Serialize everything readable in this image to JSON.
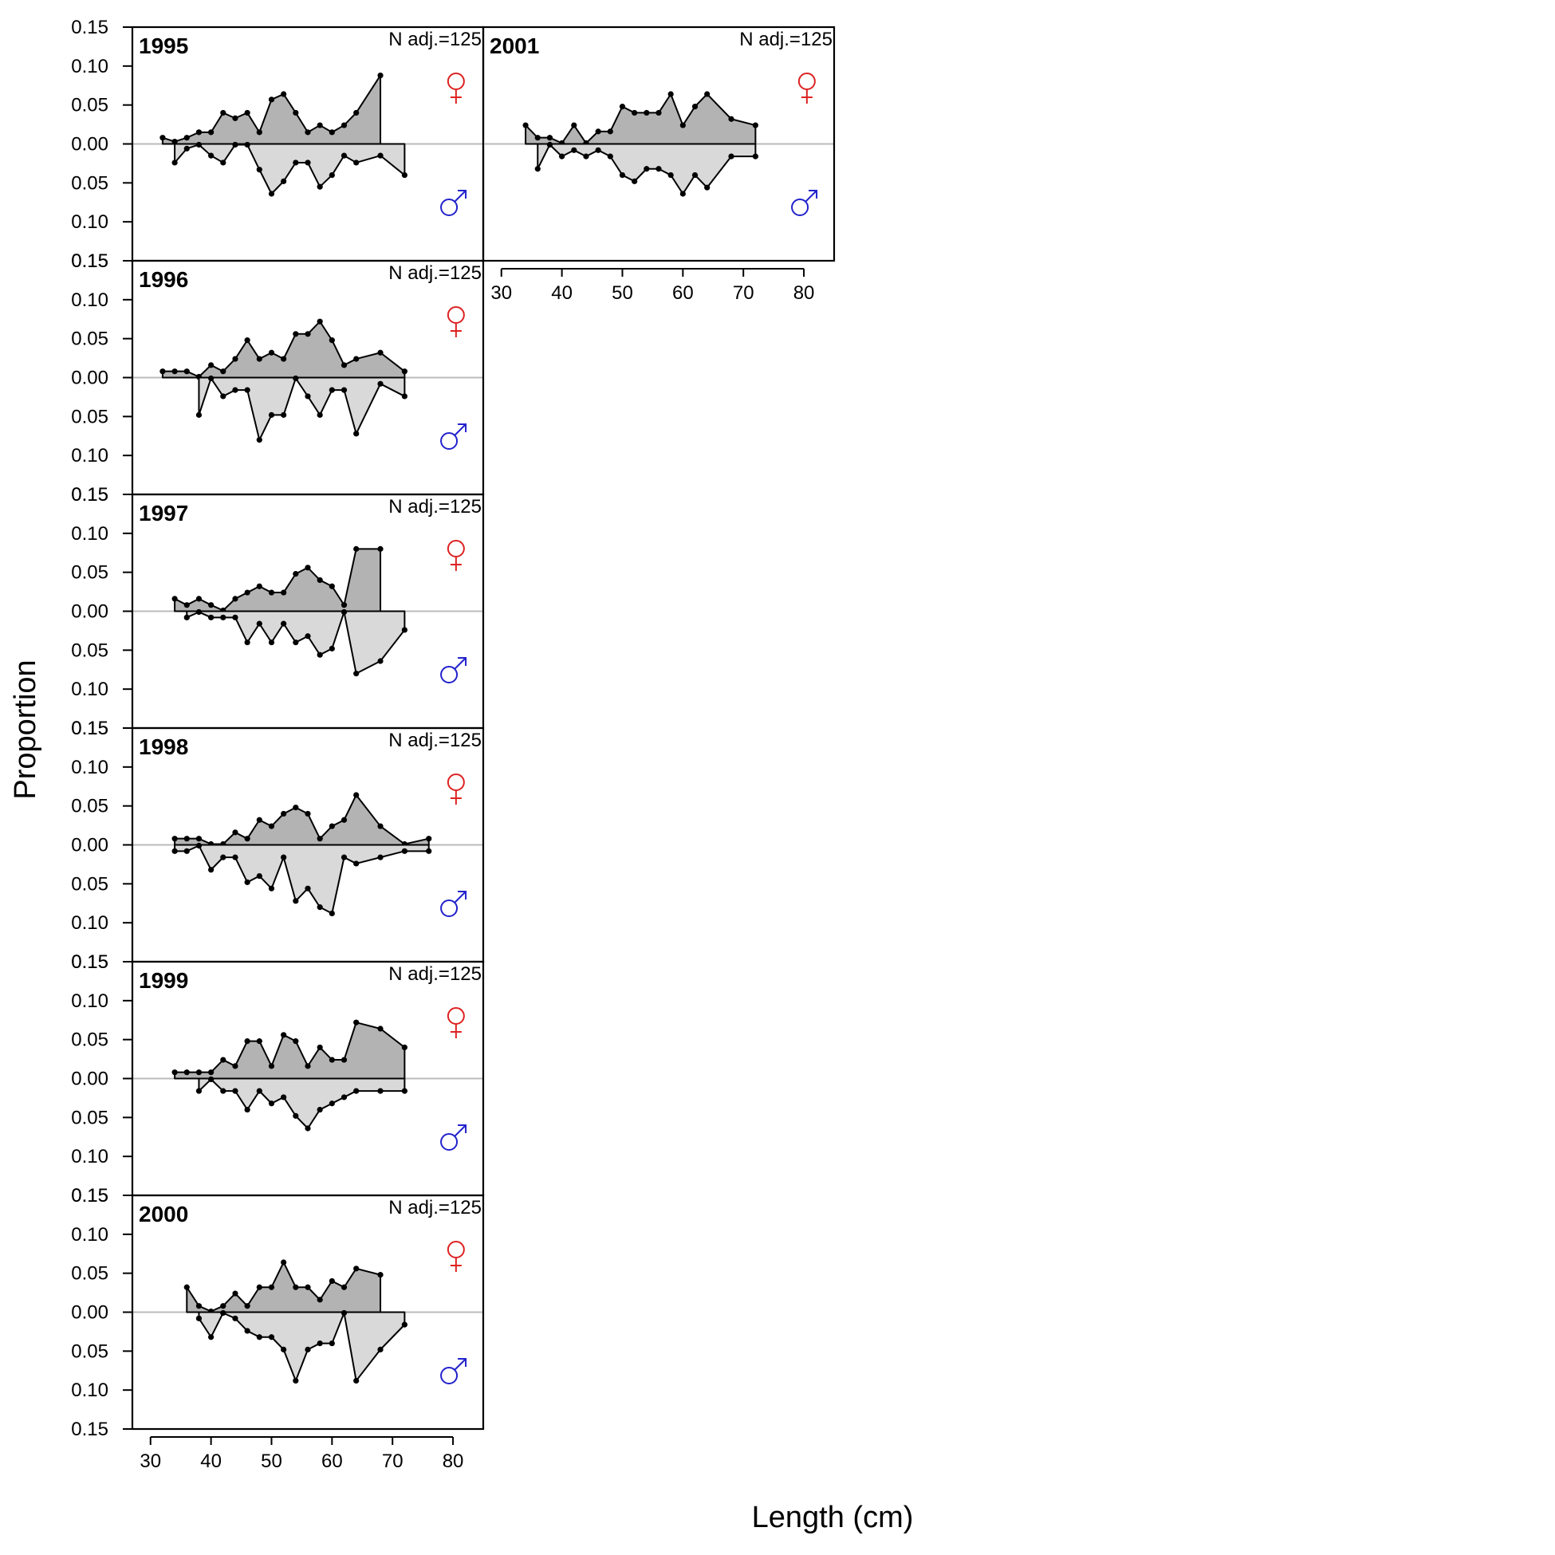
{
  "figure": {
    "ylabel": "Proportion",
    "xlabel": "Length (cm)",
    "female_symbol": "♀",
    "male_symbol": "♂",
    "colors": {
      "female_fill": "#b3b3b3",
      "male_fill": "#d9d9d9",
      "female_symbol": "#dd2222",
      "male_symbol": "#2222cc",
      "zero_line": "#bbbbbb",
      "line": "#000000"
    }
  },
  "chart_data": [
    {
      "type": "area",
      "title": "1995",
      "annotation": "N adj.=125",
      "xlim": [
        27,
        85
      ],
      "ylim": [
        -0.15,
        0.15
      ],
      "x_ticks": [
        30,
        40,
        50,
        60,
        70,
        80
      ],
      "y_ticks": [
        "0.15",
        "0.10",
        "0.05",
        "0.00",
        "0.05",
        "0.10",
        "0.15"
      ],
      "show_x_axis": false,
      "series": [
        {
          "name": "♀",
          "x": [
            32,
            34,
            36,
            38,
            40,
            42,
            44,
            46,
            48,
            50,
            52,
            54,
            56,
            58,
            60,
            62,
            64,
            68
          ],
          "values": [
            0.008,
            0.003,
            0.008,
            0.015,
            0.015,
            0.04,
            0.033,
            0.04,
            0.015,
            0.057,
            0.064,
            0.04,
            0.015,
            0.024,
            0.015,
            0.024,
            0.04,
            0.088
          ]
        },
        {
          "name": "♂",
          "x": [
            34,
            36,
            38,
            40,
            42,
            44,
            46,
            48,
            50,
            52,
            54,
            56,
            58,
            60,
            62,
            64,
            68,
            72
          ],
          "values": [
            0.024,
            0.006,
            0.001,
            0.015,
            0.024,
            0.001,
            0.001,
            0.033,
            0.064,
            0.048,
            0.024,
            0.024,
            0.055,
            0.04,
            0.015,
            0.024,
            0.015,
            0.04
          ]
        }
      ]
    },
    {
      "type": "area",
      "title": "1996",
      "annotation": "N adj.=125",
      "xlim": [
        27,
        85
      ],
      "ylim": [
        -0.15,
        0.15
      ],
      "x_ticks": [
        30,
        40,
        50,
        60,
        70,
        80
      ],
      "y_ticks": [
        "0.15",
        "0.10",
        "0.05",
        "0.00",
        "0.05",
        "0.10",
        "0.15"
      ],
      "show_x_axis": false,
      "series": [
        {
          "name": "♀",
          "x": [
            32,
            34,
            36,
            38,
            40,
            42,
            44,
            46,
            48,
            50,
            52,
            54,
            56,
            58,
            60,
            62,
            64,
            68,
            72
          ],
          "values": [
            0.008,
            0.008,
            0.008,
            0.001,
            0.016,
            0.008,
            0.024,
            0.048,
            0.024,
            0.032,
            0.024,
            0.056,
            0.056,
            0.072,
            0.048,
            0.016,
            0.024,
            0.032,
            0.008
          ]
        },
        {
          "name": "♂",
          "x": [
            38,
            40,
            42,
            44,
            46,
            48,
            50,
            52,
            54,
            56,
            58,
            60,
            62,
            64,
            68,
            72
          ],
          "values": [
            0.048,
            0.001,
            0.024,
            0.016,
            0.016,
            0.08,
            0.048,
            0.048,
            0.001,
            0.024,
            0.048,
            0.016,
            0.016,
            0.072,
            0.008,
            0.024
          ]
        }
      ]
    },
    {
      "type": "area",
      "title": "1997",
      "annotation": "N adj.=125",
      "xlim": [
        27,
        85
      ],
      "ylim": [
        -0.15,
        0.15
      ],
      "x_ticks": [
        30,
        40,
        50,
        60,
        70,
        80
      ],
      "y_ticks": [
        "0.15",
        "0.10",
        "0.05",
        "0.00",
        "0.05",
        "0.10",
        "0.15"
      ],
      "show_x_axis": false,
      "series": [
        {
          "name": "♀",
          "x": [
            34,
            36,
            38,
            40,
            42,
            44,
            46,
            48,
            50,
            52,
            54,
            56,
            58,
            60,
            62,
            64,
            68
          ],
          "values": [
            0.016,
            0.008,
            0.016,
            0.008,
            0.001,
            0.016,
            0.024,
            0.032,
            0.024,
            0.024,
            0.048,
            0.056,
            0.04,
            0.032,
            0.008,
            0.08,
            0.08
          ]
        },
        {
          "name": "♂",
          "x": [
            36,
            38,
            40,
            42,
            44,
            46,
            48,
            50,
            52,
            54,
            56,
            58,
            60,
            62,
            64,
            68,
            72
          ],
          "values": [
            0.008,
            0.001,
            0.008,
            0.008,
            0.008,
            0.04,
            0.016,
            0.04,
            0.016,
            0.04,
            0.032,
            0.056,
            0.048,
            0.001,
            0.08,
            0.064,
            0.024
          ]
        }
      ]
    },
    {
      "type": "area",
      "title": "1998",
      "annotation": "N adj.=125",
      "xlim": [
        27,
        85
      ],
      "ylim": [
        -0.15,
        0.15
      ],
      "x_ticks": [
        30,
        40,
        50,
        60,
        70,
        80
      ],
      "y_ticks": [
        "0.15",
        "0.10",
        "0.05",
        "0.00",
        "0.05",
        "0.10",
        "0.15"
      ],
      "show_x_axis": false,
      "series": [
        {
          "name": "♀",
          "x": [
            34,
            36,
            38,
            40,
            42,
            44,
            46,
            48,
            50,
            52,
            54,
            56,
            58,
            60,
            62,
            64,
            68,
            72,
            76
          ],
          "values": [
            0.008,
            0.008,
            0.008,
            0.001,
            0.001,
            0.016,
            0.008,
            0.032,
            0.024,
            0.04,
            0.048,
            0.04,
            0.008,
            0.024,
            0.032,
            0.064,
            0.024,
            0.001,
            0.008
          ]
        },
        {
          "name": "♂",
          "x": [
            34,
            36,
            38,
            40,
            42,
            44,
            46,
            48,
            50,
            52,
            54,
            56,
            58,
            60,
            62,
            64,
            68,
            72,
            76
          ],
          "values": [
            0.008,
            0.008,
            0.001,
            0.032,
            0.016,
            0.016,
            0.048,
            0.04,
            0.056,
            0.016,
            0.072,
            0.056,
            0.08,
            0.088,
            0.016,
            0.024,
            0.016,
            0.008,
            0.008
          ]
        }
      ]
    },
    {
      "type": "area",
      "title": "1999",
      "annotation": "N adj.=125",
      "xlim": [
        27,
        85
      ],
      "ylim": [
        -0.15,
        0.15
      ],
      "x_ticks": [
        30,
        40,
        50,
        60,
        70,
        80
      ],
      "y_ticks": [
        "0.15",
        "0.10",
        "0.05",
        "0.00",
        "0.05",
        "0.10",
        "0.15"
      ],
      "show_x_axis": false,
      "series": [
        {
          "name": "♀",
          "x": [
            34,
            36,
            38,
            40,
            42,
            44,
            46,
            48,
            50,
            52,
            54,
            56,
            58,
            60,
            62,
            64,
            68,
            72
          ],
          "values": [
            0.008,
            0.008,
            0.008,
            0.008,
            0.024,
            0.016,
            0.048,
            0.048,
            0.016,
            0.056,
            0.048,
            0.016,
            0.04,
            0.024,
            0.024,
            0.072,
            0.064,
            0.04
          ]
        },
        {
          "name": "♂",
          "x": [
            38,
            40,
            42,
            44,
            46,
            48,
            50,
            52,
            54,
            56,
            58,
            60,
            62,
            64,
            68,
            72
          ],
          "values": [
            0.016,
            0.001,
            0.016,
            0.016,
            0.04,
            0.016,
            0.032,
            0.024,
            0.048,
            0.064,
            0.04,
            0.032,
            0.024,
            0.016,
            0.016,
            0.016
          ]
        }
      ]
    },
    {
      "type": "area",
      "title": "2000",
      "annotation": "N adj.=125",
      "xlim": [
        27,
        85
      ],
      "ylim": [
        -0.15,
        0.15
      ],
      "x_ticks": [
        30,
        40,
        50,
        60,
        70,
        80
      ],
      "y_ticks": [
        "0.15",
        "0.10",
        "0.05",
        "0.00",
        "0.05",
        "0.10",
        "0.15"
      ],
      "show_x_axis": true,
      "series": [
        {
          "name": "♀",
          "x": [
            36,
            38,
            40,
            42,
            44,
            46,
            48,
            50,
            52,
            54,
            56,
            58,
            60,
            62,
            64,
            68
          ],
          "values": [
            0.032,
            0.008,
            0.001,
            0.008,
            0.024,
            0.008,
            0.032,
            0.032,
            0.064,
            0.032,
            0.032,
            0.016,
            0.04,
            0.032,
            0.056,
            0.048
          ]
        },
        {
          "name": "♂",
          "x": [
            38,
            40,
            42,
            44,
            46,
            48,
            50,
            52,
            54,
            56,
            58,
            60,
            62,
            64,
            68,
            72
          ],
          "values": [
            0.008,
            0.032,
            0.001,
            0.008,
            0.024,
            0.032,
            0.032,
            0.048,
            0.088,
            0.048,
            0.04,
            0.04,
            0.001,
            0.088,
            0.048,
            0.016
          ]
        }
      ]
    },
    {
      "type": "area",
      "title": "2001",
      "annotation": "N adj.=125",
      "xlim": [
        27,
        85
      ],
      "ylim": [
        -0.15,
        0.15
      ],
      "x_ticks": [
        30,
        40,
        50,
        60,
        70,
        80
      ],
      "y_ticks": [],
      "show_x_axis": true,
      "series": [
        {
          "name": "♀",
          "x": [
            34,
            36,
            38,
            40,
            42,
            44,
            46,
            48,
            50,
            52,
            54,
            56,
            58,
            60,
            62,
            64,
            68,
            72
          ],
          "values": [
            0.024,
            0.008,
            0.008,
            0.001,
            0.024,
            0.001,
            0.016,
            0.016,
            0.048,
            0.04,
            0.04,
            0.04,
            0.064,
            0.024,
            0.048,
            0.064,
            0.032,
            0.024
          ]
        },
        {
          "name": "♂",
          "x": [
            36,
            38,
            40,
            42,
            44,
            46,
            48,
            50,
            52,
            54,
            56,
            58,
            60,
            62,
            64,
            68,
            72
          ],
          "values": [
            0.032,
            0.001,
            0.016,
            0.008,
            0.016,
            0.008,
            0.016,
            0.04,
            0.048,
            0.032,
            0.032,
            0.04,
            0.064,
            0.04,
            0.056,
            0.016,
            0.016
          ]
        }
      ]
    }
  ]
}
